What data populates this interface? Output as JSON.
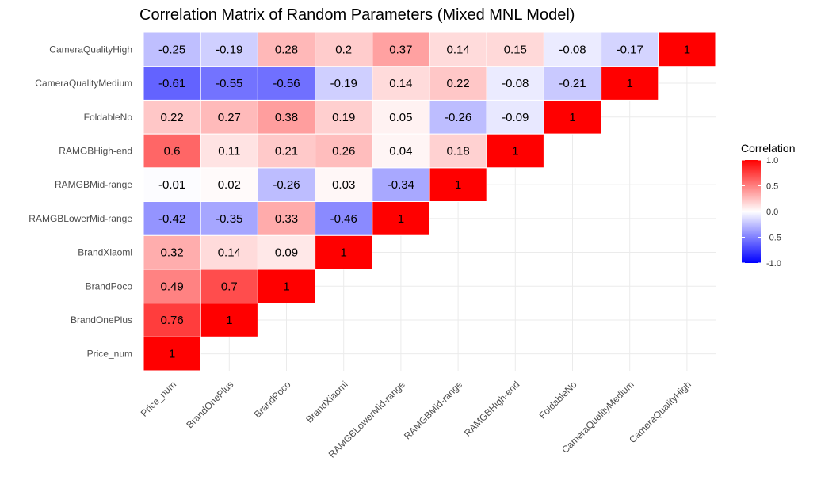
{
  "chart_data": {
    "type": "heatmap",
    "title": "Correlation Matrix of Random Parameters (Mixed MNL Model)",
    "xlabel": "",
    "ylabel": "",
    "variables": [
      "Price_num",
      "BrandOnePlus",
      "BrandPoco",
      "BrandXiaomi",
      "RAMGBLowerMid-range",
      "RAMGBMid-range",
      "RAMGBHigh-end",
      "FoldableNo",
      "CameraQualityMedium",
      "CameraQualityHigh"
    ],
    "matrix": [
      [
        1,
        null,
        null,
        null,
        null,
        null,
        null,
        null,
        null,
        null
      ],
      [
        0.76,
        1,
        null,
        null,
        null,
        null,
        null,
        null,
        null,
        null
      ],
      [
        0.49,
        0.7,
        1,
        null,
        null,
        null,
        null,
        null,
        null,
        null
      ],
      [
        0.32,
        0.14,
        0.09,
        1,
        null,
        null,
        null,
        null,
        null,
        null
      ],
      [
        -0.42,
        -0.35,
        0.33,
        -0.46,
        1,
        null,
        null,
        null,
        null,
        null
      ],
      [
        -0.01,
        0.02,
        -0.26,
        0.03,
        -0.34,
        1,
        null,
        null,
        null,
        null
      ],
      [
        0.6,
        0.11,
        0.21,
        0.26,
        0.04,
        0.18,
        1,
        null,
        null,
        null
      ],
      [
        0.22,
        0.27,
        0.38,
        0.19,
        0.05,
        -0.26,
        -0.09,
        1,
        null,
        null
      ],
      [
        -0.61,
        -0.55,
        -0.56,
        -0.19,
        0.14,
        0.22,
        -0.08,
        -0.21,
        1,
        null
      ],
      [
        -0.25,
        -0.19,
        0.28,
        0.2,
        0.37,
        0.14,
        0.15,
        -0.08,
        -0.17,
        1
      ]
    ],
    "labels": [
      [
        "1",
        null,
        null,
        null,
        null,
        null,
        null,
        null,
        null,
        null
      ],
      [
        "0.76",
        "1",
        null,
        null,
        null,
        null,
        null,
        null,
        null,
        null
      ],
      [
        "0.49",
        "0.7",
        "1",
        null,
        null,
        null,
        null,
        null,
        null,
        null
      ],
      [
        "0.32",
        "0.14",
        "0.09",
        "1",
        null,
        null,
        null,
        null,
        null,
        null
      ],
      [
        "-0.42",
        "-0.35",
        "0.33",
        "-0.46",
        "1",
        null,
        null,
        null,
        null,
        null
      ],
      [
        "-0.01",
        "0.02",
        "-0.26",
        "0.03",
        "-0.34",
        "1",
        null,
        null,
        null,
        null
      ],
      [
        "0.6",
        "0.11",
        "0.21",
        "0.26",
        "0.04",
        "0.18",
        "1",
        null,
        null,
        null
      ],
      [
        "0.22",
        "0.27",
        "0.38",
        "0.19",
        "0.05",
        "-0.26",
        "-0.09",
        "1",
        null,
        null
      ],
      [
        "-0.61",
        "-0.55",
        "-0.56",
        "-0.19",
        "0.14",
        "0.22",
        "-0.08",
        "-0.21",
        "1",
        null
      ],
      [
        "-0.25",
        "-0.19",
        "0.28",
        "0.2",
        "0.37",
        "0.14",
        "0.15",
        "-0.08",
        "-0.17",
        "1"
      ]
    ],
    "scale": {
      "min": -1,
      "max": 1,
      "low_color": "#0000ff",
      "mid_color": "#ffffff",
      "high_color": "#ff0000"
    },
    "legend": {
      "title": "Correlation",
      "ticks": [
        "1.0",
        "0.5",
        "0.0",
        "-0.5",
        "-1.0"
      ],
      "tick_values": [
        1,
        0.5,
        0,
        -0.5,
        -1
      ],
      "position": "right"
    },
    "grid": true
  }
}
